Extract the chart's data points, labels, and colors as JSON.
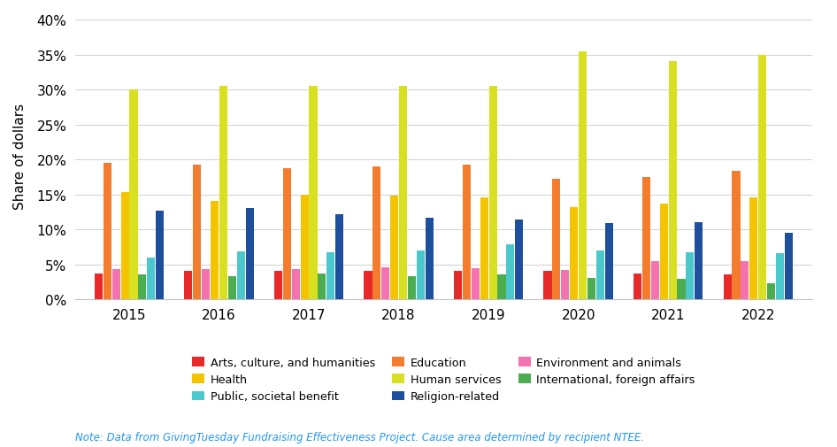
{
  "years": [
    2015,
    2016,
    2017,
    2018,
    2019,
    2020,
    2021,
    2022
  ],
  "categories": [
    "Arts, culture, and humanities",
    "Education",
    "Environment and animals",
    "Health",
    "Human services",
    "International, foreign affairs",
    "Public, societal benefit",
    "Religion-related"
  ],
  "colors": [
    "#e8292a",
    "#f47c2f",
    "#f472b0",
    "#f5c400",
    "#d9e021",
    "#4cad50",
    "#4bc8cc",
    "#1e4f9c"
  ],
  "values": {
    "Arts, culture, and humanities": [
      3.7,
      4.1,
      4.1,
      4.1,
      4.0,
      4.0,
      3.7,
      3.6
    ],
    "Education": [
      19.5,
      19.2,
      18.8,
      19.0,
      19.2,
      17.2,
      17.5,
      18.3
    ],
    "Environment and animals": [
      4.3,
      4.3,
      4.3,
      4.6,
      4.4,
      4.2,
      5.5,
      5.4
    ],
    "Health": [
      15.3,
      14.0,
      14.9,
      14.8,
      14.5,
      13.2,
      13.7,
      14.5
    ],
    "Human services": [
      30.0,
      30.5,
      30.5,
      30.5,
      30.5,
      35.5,
      34.0,
      35.0
    ],
    "International, foreign affairs": [
      3.5,
      3.3,
      3.7,
      3.3,
      3.5,
      3.0,
      2.9,
      2.3
    ],
    "Public, societal benefit": [
      6.0,
      6.8,
      6.7,
      7.0,
      7.9,
      7.0,
      6.7,
      6.6
    ],
    "Religion-related": [
      12.7,
      13.0,
      12.1,
      11.7,
      11.4,
      10.9,
      11.0,
      9.5
    ]
  },
  "ylabel": "Share of dollars",
  "ylim": [
    0,
    41
  ],
  "yticks": [
    0,
    5,
    10,
    15,
    20,
    25,
    30,
    35,
    40
  ],
  "background_color": "#ffffff",
  "note": "Note: Data from GivingTuesday Fundraising Effectiveness Project. Cause area determined by recipient NTEE.",
  "note_color": "#2196F3",
  "figsize": [
    9.46,
    5.06
  ],
  "dpi": 100
}
